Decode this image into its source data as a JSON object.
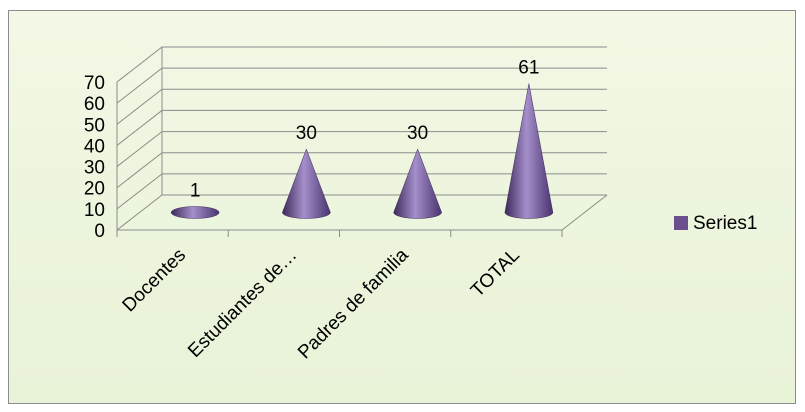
{
  "chart_data": {
    "type": "bar",
    "shape": "cone",
    "categories": [
      "Docentes",
      "Estudiantes de…",
      "Padres de familia",
      "TOTAL"
    ],
    "series": [
      {
        "name": "Series1",
        "values": [
          1,
          30,
          30,
          61
        ],
        "color": "#6b4f8f"
      }
    ],
    "data_labels": [
      "1",
      "30",
      "30",
      "61"
    ],
    "yticks": [
      "0",
      "10",
      "20",
      "30",
      "40",
      "50",
      "60",
      "70"
    ],
    "ylim": [
      0,
      70
    ],
    "grid": true,
    "legend_position": "right",
    "colors": {
      "cone_dark": "#3d2a5a",
      "cone_mid": "#7a5ea6",
      "cone_light": "#a58fcb",
      "legend_swatch": "#6b4f8f"
    }
  }
}
